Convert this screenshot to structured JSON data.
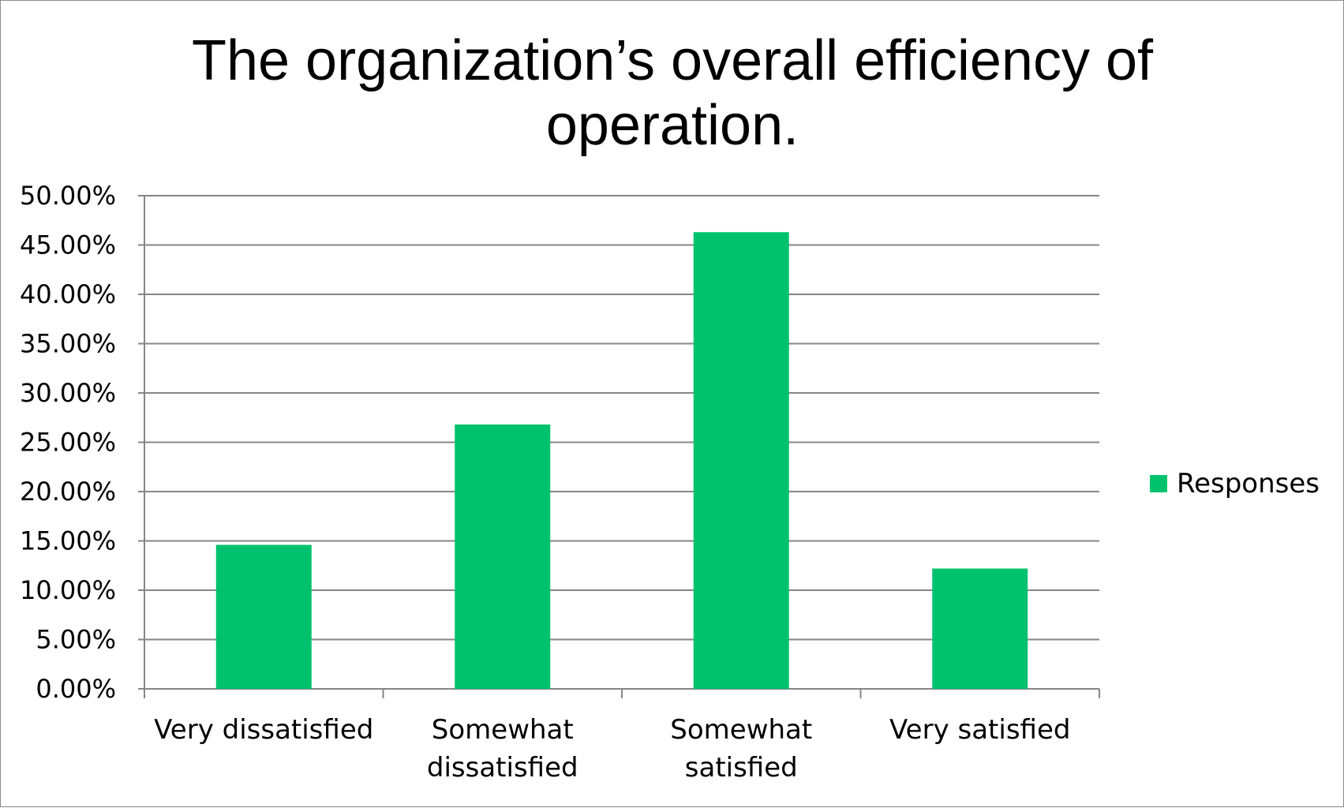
{
  "chart_data": {
    "type": "bar",
    "title_lines": [
      "The organization’s overall efficiency of",
      "operation."
    ],
    "categories": [
      [
        "Very dissatisfied"
      ],
      [
        "Somewhat",
        "dissatisfied"
      ],
      [
        "Somewhat",
        "satisfied"
      ],
      [
        "Very satisfied"
      ]
    ],
    "series": [
      {
        "name": "Responses",
        "values": [
          14.6,
          26.8,
          46.3,
          12.2
        ],
        "color": "#00c26e"
      }
    ],
    "ylim": [
      0,
      50
    ],
    "ytick_step": 5,
    "ytick_labels": [
      "0.00%",
      "5.00%",
      "10.00%",
      "15.00%",
      "20.00%",
      "25.00%",
      "30.00%",
      "35.00%",
      "40.00%",
      "45.00%",
      "50.00%"
    ],
    "grid": true,
    "legend_position": "right",
    "gridline_color": "#868686"
  }
}
